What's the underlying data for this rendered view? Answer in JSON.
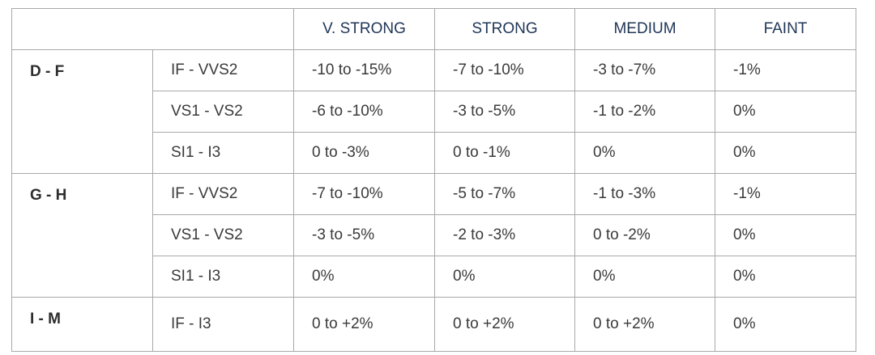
{
  "table": {
    "columns": [
      "V. STRONG",
      "STRONG",
      "MEDIUM",
      "FAINT"
    ],
    "groups": [
      {
        "label": "D - F",
        "rows": [
          {
            "clarity": "IF - VVS2",
            "values": [
              "-10 to -15%",
              "-7 to -10%",
              "-3 to -7%",
              "-1%"
            ]
          },
          {
            "clarity": "VS1 - VS2",
            "values": [
              "-6 to -10%",
              "-3 to -5%",
              "-1 to -2%",
              "0%"
            ]
          },
          {
            "clarity": "SI1 - I3",
            "values": [
              "0 to -3%",
              "0 to -1%",
              "0%",
              "0%"
            ]
          }
        ]
      },
      {
        "label": "G - H",
        "rows": [
          {
            "clarity": "IF - VVS2",
            "values": [
              "-7 to -10%",
              "-5 to -7%",
              "-1 to -3%",
              "-1%"
            ]
          },
          {
            "clarity": "VS1 - VS2",
            "values": [
              "-3 to -5%",
              "-2 to -3%",
              "0 to -2%",
              "0%"
            ]
          },
          {
            "clarity": "SI1 - I3",
            "values": [
              "0%",
              "0%",
              "0%",
              "0%"
            ]
          }
        ]
      },
      {
        "label": "I - M",
        "rows": [
          {
            "clarity": "IF - I3",
            "values": [
              "0 to +2%",
              "0 to +2%",
              "0 to +2%",
              "0%"
            ]
          }
        ]
      }
    ]
  }
}
